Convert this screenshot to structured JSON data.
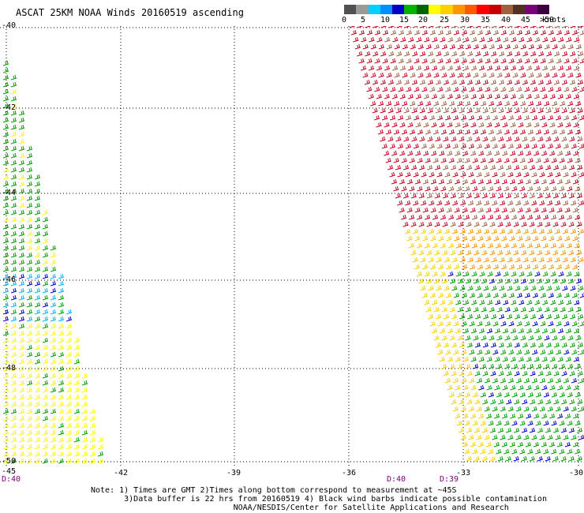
{
  "title": "ASCAT 25KM NOAA Winds 20160519 ascending",
  "legend": {
    "labels": [
      "0",
      "5",
      "10",
      "15",
      "20",
      "25",
      "30",
      "35",
      "40",
      "45",
      ">50"
    ],
    "units": "knots",
    "colors": [
      "#505050",
      "#9a9a9a",
      "#00d0ff",
      "#0090ff",
      "#0000c8",
      "#00b400",
      "#006400",
      "#ffff00",
      "#ffd000",
      "#ff9600",
      "#ff5a00",
      "#ff0000",
      "#c80000",
      "#a06040",
      "#503020",
      "#7a007a",
      "#3c003c"
    ]
  },
  "axes": {
    "lon_ticks": [
      "-42",
      "-39",
      "-36",
      "-33",
      "-30"
    ],
    "lat_ticks": [
      "-40",
      "-42",
      "-44",
      "-46",
      "-48",
      "-50"
    ],
    "corner_label": "-45"
  },
  "times": [
    "D:40",
    "D:40",
    "D:39"
  ],
  "notes": [
    "Note: 1) Times are GMT 2)Times along bottom correspond to measurement at ~45S",
    "       3)Data buffer is 22 hrs from 20160519 4) Black wind barbs indicate possible contamination",
    "                              NOAA/NESDIS/Center for Satellite Applications and Research"
  ],
  "swaths": [
    {
      "name": "west",
      "color_bands": [
        "#ffff00",
        "#00a000",
        "#00b4ff",
        "#0000c8"
      ]
    },
    {
      "name": "east",
      "color_bands": [
        "#c80020",
        "#a06040",
        "#ff9600",
        "#ffd000",
        "#00a000",
        "#0000c8"
      ]
    }
  ]
}
